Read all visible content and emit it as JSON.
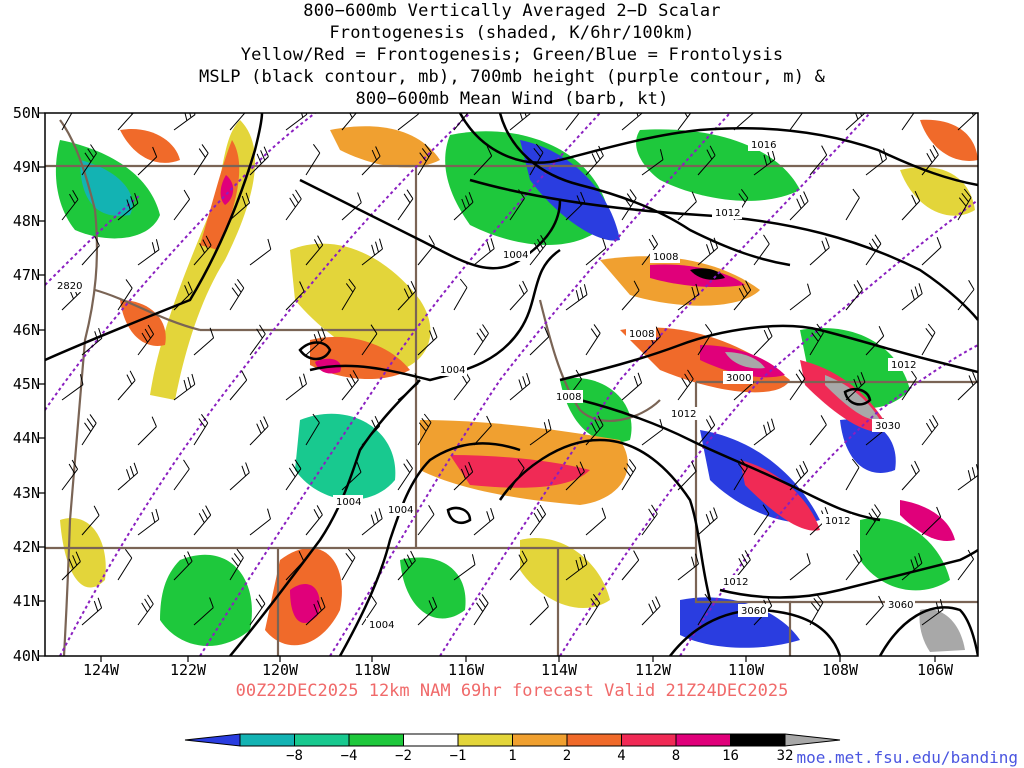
{
  "title_lines": [
    "800−600mb Vertically Averaged 2−D Scalar",
    "Frontogenesis (shaded, K/6hr/100km)",
    "Yellow/Red = Frontogenesis;  Green/Blue = Frontolysis",
    "MSLP (black contour, mb), 700mb height (purple contour, m) &",
    "800−600mb Mean Wind (barb, kt)"
  ],
  "subtitle": "00Z22DEC2025 12km NAM 69hr forecast Valid 21Z24DEC2025",
  "url": "moe.met.fsu.edu/banding",
  "axes": {
    "lat_labels": [
      "50N",
      "49N",
      "48N",
      "47N",
      "46N",
      "45N",
      "44N",
      "43N",
      "42N",
      "41N",
      "40N"
    ],
    "lon_labels": [
      "124W",
      "122W",
      "120W",
      "118W",
      "116W",
      "114W",
      "112W",
      "110W",
      "108W",
      "106W"
    ],
    "lat_range": [
      40,
      50
    ],
    "lon_range": [
      -125,
      -105
    ]
  },
  "legend": {
    "ticks": [
      "−8",
      "−4",
      "−2",
      "−1",
      "1",
      "2",
      "4",
      "8",
      "16",
      "32"
    ],
    "colors": [
      "#2a3de0",
      "#13b3b3",
      "#18c98f",
      "#1ec83c",
      "#ffffff",
      "#e3d53a",
      "#f0a030",
      "#f06a2a",
      "#f02a55",
      "#e0007a",
      "#000000",
      "#a8a8a8"
    ]
  },
  "mslp_labels": [
    "1016",
    "1012",
    "1008",
    "1004",
    "1008",
    "1004",
    "1008",
    "1012",
    "1012",
    "1004",
    "1004",
    "1012",
    "1012",
    "1004"
  ],
  "height_labels": [
    "2820",
    "3000",
    "3030",
    "3060",
    "3060"
  ],
  "colors": {
    "mslp": "#000000",
    "height": "#8a1fc0",
    "borders": "#7a6455",
    "subtitle": "#f06a6a",
    "url": "#4a55e0"
  }
}
